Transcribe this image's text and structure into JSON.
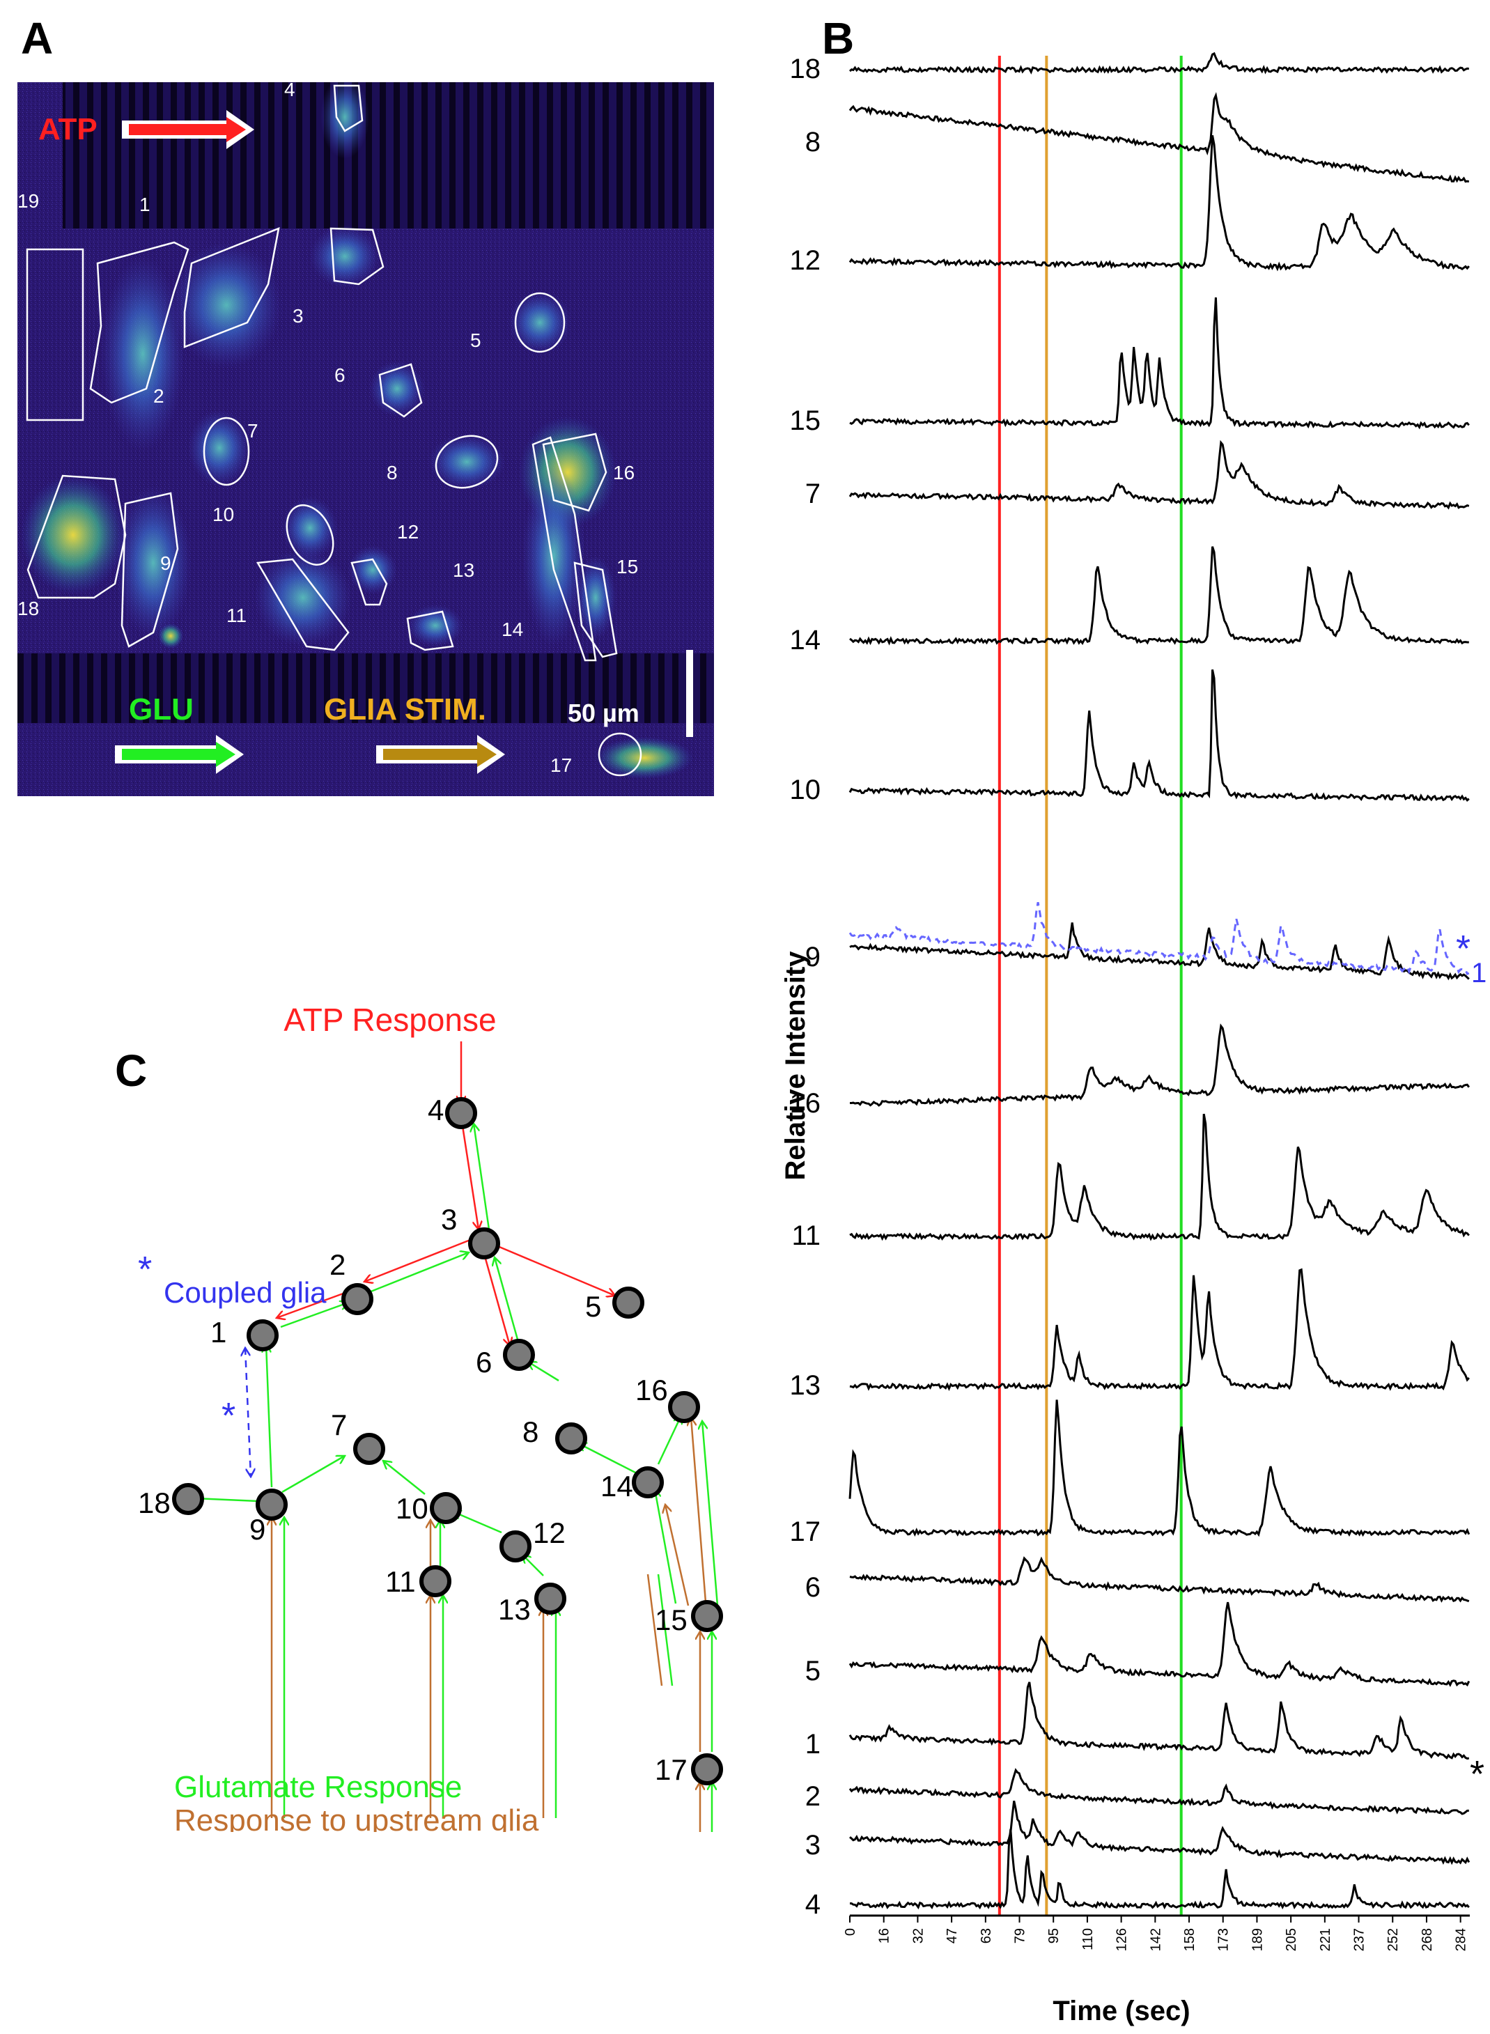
{
  "panels": {
    "a": "A",
    "b": "B",
    "c": "C"
  },
  "panel_a": {
    "atp_label": "ATP",
    "glu_label": "GLU",
    "glia_stim_label": "GLIA STIM.",
    "scale_label": "50 µm",
    "colors": {
      "atp": "#ff2020",
      "glu": "#22ee22",
      "glia": "#f0b020",
      "background": "#25146a"
    },
    "cells": [
      {
        "id": "1",
        "label": "1"
      },
      {
        "id": "2",
        "label": "2"
      },
      {
        "id": "3",
        "label": "3"
      },
      {
        "id": "4",
        "label": "4"
      },
      {
        "id": "5",
        "label": "5"
      },
      {
        "id": "6",
        "label": "6"
      },
      {
        "id": "7",
        "label": "7"
      },
      {
        "id": "8",
        "label": "8"
      },
      {
        "id": "9",
        "label": "9"
      },
      {
        "id": "10",
        "label": "10"
      },
      {
        "id": "11",
        "label": "11"
      },
      {
        "id": "12",
        "label": "12"
      },
      {
        "id": "13",
        "label": "13"
      },
      {
        "id": "14",
        "label": "14"
      },
      {
        "id": "15",
        "label": "15"
      },
      {
        "id": "16",
        "label": "16"
      },
      {
        "id": "17",
        "label": "17"
      },
      {
        "id": "18",
        "label": "18"
      },
      {
        "id": "19",
        "label": "19"
      }
    ]
  },
  "chart_data": {
    "type": "line",
    "xlabel": "Time (sec)",
    "ylabel": "Relative Intensity",
    "xlim": [
      0,
      290
    ],
    "x_ticks": [
      "0",
      "16",
      "32",
      "47",
      "63",
      "79",
      "95",
      "110",
      "126",
      "142",
      "158",
      "173",
      "189",
      "205",
      "221",
      "237",
      "252",
      "268",
      "284"
    ],
    "stimulus_lines": [
      {
        "name": "ATP",
        "x": 70,
        "color": "#ff2020"
      },
      {
        "name": "GLIA STIM.",
        "x": 92,
        "color": "#e0a030"
      },
      {
        "name": "GLU",
        "x": 155,
        "color": "#22dd22"
      }
    ],
    "annotations": {
      "coupled_marker": "*",
      "coupled_label": "1",
      "cell1_marker": "*"
    },
    "series": [
      {
        "name": "18",
        "color": "#000000",
        "dashed": false,
        "baseline": 0.0,
        "drift": 0.0,
        "peaks": [
          [
            170,
            0.4,
            2.5
          ]
        ]
      },
      {
        "name": "8",
        "color": "#000000",
        "dashed": false,
        "baseline": 0.9,
        "drift": -1.0,
        "peaks": [
          [
            171,
            1.5,
            2.0
          ],
          [
            178,
            0.6,
            6.0
          ]
        ]
      },
      {
        "name": "12",
        "color": "#000000",
        "dashed": false,
        "baseline": 0.0,
        "drift": -0.2,
        "peaks": [
          [
            170,
            3.5,
            2.5
          ],
          [
            222,
            1.2,
            4.0
          ],
          [
            235,
            1.2,
            6.0
          ],
          [
            255,
            0.8,
            6.0
          ]
        ]
      },
      {
        "name": "15",
        "color": "#000000",
        "dashed": false,
        "baseline": 0.0,
        "drift": -0.1,
        "peaks": [
          [
            127,
            2.0,
            1.5
          ],
          [
            133,
            1.8,
            1.5
          ],
          [
            139,
            1.8,
            1.5
          ],
          [
            145,
            1.6,
            1.5
          ],
          [
            171,
            3.6,
            1.2
          ]
        ]
      },
      {
        "name": "7",
        "color": "#000000",
        "dashed": false,
        "baseline": 0.0,
        "drift": -0.3,
        "peaks": [
          [
            126,
            0.4,
            3.0
          ],
          [
            174,
            1.6,
            2.5
          ],
          [
            184,
            0.8,
            5.0
          ],
          [
            229,
            0.4,
            3.0
          ]
        ]
      },
      {
        "name": "14",
        "color": "#000000",
        "dashed": false,
        "baseline": 0.0,
        "drift": 0.0,
        "peaks": [
          [
            116,
            2.0,
            2.5
          ],
          [
            170,
            2.6,
            2.0
          ],
          [
            215,
            2.0,
            3.0
          ],
          [
            234,
            1.8,
            4.0
          ]
        ]
      },
      {
        "name": "10",
        "color": "#000000",
        "dashed": false,
        "baseline": 0.0,
        "drift": -0.2,
        "peaks": [
          [
            112,
            2.2,
            1.8
          ],
          [
            133,
            0.8,
            1.8
          ],
          [
            140,
            0.8,
            1.8
          ],
          [
            170,
            3.8,
            1.2
          ]
        ]
      },
      {
        "name": "9",
        "color": "#000000",
        "dashed": false,
        "baseline": 0.3,
        "drift": -0.5,
        "peaks": [
          [
            104,
            0.9,
            1.5
          ],
          [
            168,
            0.9,
            2.0
          ],
          [
            193,
            0.7,
            1.5
          ],
          [
            227,
            0.7,
            1.5
          ],
          [
            252,
            0.9,
            2.0
          ]
        ]
      },
      {
        "name": "1*",
        "color": "#6666ff",
        "dashed": true,
        "baseline": 0.6,
        "drift": -0.4,
        "peaks": [
          [
            22,
            0.3,
            2.0
          ],
          [
            88,
            1.1,
            2.0
          ],
          [
            170,
            0.6,
            2.0
          ],
          [
            181,
            1.0,
            2.0
          ],
          [
            202,
            1.0,
            2.0
          ],
          [
            265,
            0.5,
            2.0
          ],
          [
            276,
            1.1,
            2.0
          ]
        ]
      },
      {
        "name": "16",
        "color": "#000000",
        "dashed": false,
        "baseline": 0.0,
        "drift": 0.5,
        "peaks": [
          [
            113,
            0.8,
            3.0
          ],
          [
            125,
            0.4,
            5.0
          ],
          [
            140,
            0.4,
            4.0
          ],
          [
            174,
            1.8,
            3.0
          ]
        ]
      },
      {
        "name": "11",
        "color": "#000000",
        "dashed": false,
        "baseline": 0.0,
        "drift": 0.0,
        "peaks": [
          [
            98,
            2.0,
            2.5
          ],
          [
            110,
            1.2,
            3.0
          ],
          [
            166,
            3.5,
            1.5
          ],
          [
            210,
            2.4,
            3.0
          ],
          [
            225,
            0.8,
            5.0
          ],
          [
            250,
            0.6,
            5.0
          ],
          [
            270,
            1.2,
            4.0
          ]
        ]
      },
      {
        "name": "13",
        "color": "#000000",
        "dashed": false,
        "baseline": 0.0,
        "drift": 0.0,
        "peaks": [
          [
            97,
            1.6,
            2.0
          ],
          [
            107,
            0.8,
            1.5
          ],
          [
            161,
            3.0,
            1.8
          ],
          [
            168,
            2.2,
            2.0
          ],
          [
            211,
            3.2,
            3.0
          ],
          [
            282,
            1.2,
            2.5
          ]
        ]
      },
      {
        "name": "17",
        "color": "#000000",
        "dashed": false,
        "baseline": 0.0,
        "drift": 0.0,
        "peaks": [
          [
            2,
            2.2,
            2.5
          ],
          [
            97,
            3.5,
            2.0
          ],
          [
            155,
            2.9,
            2.0
          ],
          [
            197,
            1.7,
            3.5
          ]
        ]
      },
      {
        "name": "6",
        "color": "#000000",
        "dashed": false,
        "baseline": 0.3,
        "drift": -0.3,
        "peaks": [
          [
            82,
            0.7,
            3.0
          ],
          [
            90,
            0.5,
            3.0
          ],
          [
            218,
            0.3,
            2.5
          ]
        ]
      },
      {
        "name": "5",
        "color": "#000000",
        "dashed": false,
        "baseline": 0.2,
        "drift": -0.3,
        "peaks": [
          [
            90,
            0.9,
            3.0
          ],
          [
            113,
            0.5,
            3.0
          ],
          [
            177,
            1.9,
            3.0
          ],
          [
            205,
            0.4,
            3.0
          ],
          [
            230,
            0.3,
            3.0
          ]
        ]
      },
      {
        "name": "1",
        "color": "#000000",
        "dashed": false,
        "baseline": 0.2,
        "drift": -0.3,
        "peaks": [
          [
            19,
            0.3,
            2.5
          ],
          [
            84,
            1.6,
            2.5
          ],
          [
            176,
            1.2,
            2.0
          ],
          [
            202,
            1.3,
            2.0
          ],
          [
            247,
            0.5,
            2.5
          ],
          [
            258,
            1.0,
            2.0
          ]
        ]
      },
      {
        "name": "2",
        "color": "#000000",
        "dashed": false,
        "baseline": 0.2,
        "drift": -0.4,
        "peaks": [
          [
            78,
            0.7,
            3.0
          ],
          [
            176,
            0.4,
            2.0
          ]
        ]
      },
      {
        "name": "3",
        "color": "#000000",
        "dashed": false,
        "baseline": 0.2,
        "drift": -0.4,
        "peaks": [
          [
            77,
            1.1,
            2.0
          ],
          [
            86,
            0.6,
            2.0
          ],
          [
            98,
            0.4,
            2.0
          ],
          [
            107,
            0.4,
            2.0
          ],
          [
            175,
            0.6,
            3.0
          ]
        ]
      },
      {
        "name": "4",
        "color": "#000000",
        "dashed": false,
        "baseline": 0.0,
        "drift": 0.0,
        "peaks": [
          [
            75,
            2.2,
            1.2
          ],
          [
            83,
            1.4,
            1.2
          ],
          [
            90,
            1.0,
            1.2
          ],
          [
            98,
            0.6,
            1.2
          ],
          [
            176,
            0.9,
            1.5
          ],
          [
            236,
            0.5,
            1.2
          ]
        ]
      }
    ]
  },
  "panel_c": {
    "atp_response_label": "ATP Response",
    "coupled_marker": "*",
    "coupled_label": "Coupled glia",
    "coupled_edge_marker": "*",
    "glutamate_label": "Glutamate Response",
    "upstream_label": "Response to upstream glia",
    "colors": {
      "atp": "#ff2020",
      "glutamate": "#22ee22",
      "upstream": "#c07030",
      "coupled": "#3333ee",
      "node": "#7a7a7a"
    },
    "nodes": [
      {
        "id": "4",
        "label": "4"
      },
      {
        "id": "3",
        "label": "3"
      },
      {
        "id": "2",
        "label": "2"
      },
      {
        "id": "1",
        "label": "1"
      },
      {
        "id": "5",
        "label": "5"
      },
      {
        "id": "6",
        "label": "6"
      },
      {
        "id": "7",
        "label": "7"
      },
      {
        "id": "8",
        "label": "8"
      },
      {
        "id": "16",
        "label": "16"
      },
      {
        "id": "14",
        "label": "14"
      },
      {
        "id": "18",
        "label": "18"
      },
      {
        "id": "9",
        "label": "9"
      },
      {
        "id": "10",
        "label": "10"
      },
      {
        "id": "12",
        "label": "12"
      },
      {
        "id": "11",
        "label": "11"
      },
      {
        "id": "13",
        "label": "13"
      },
      {
        "id": "15",
        "label": "15"
      },
      {
        "id": "17",
        "label": "17"
      }
    ]
  }
}
